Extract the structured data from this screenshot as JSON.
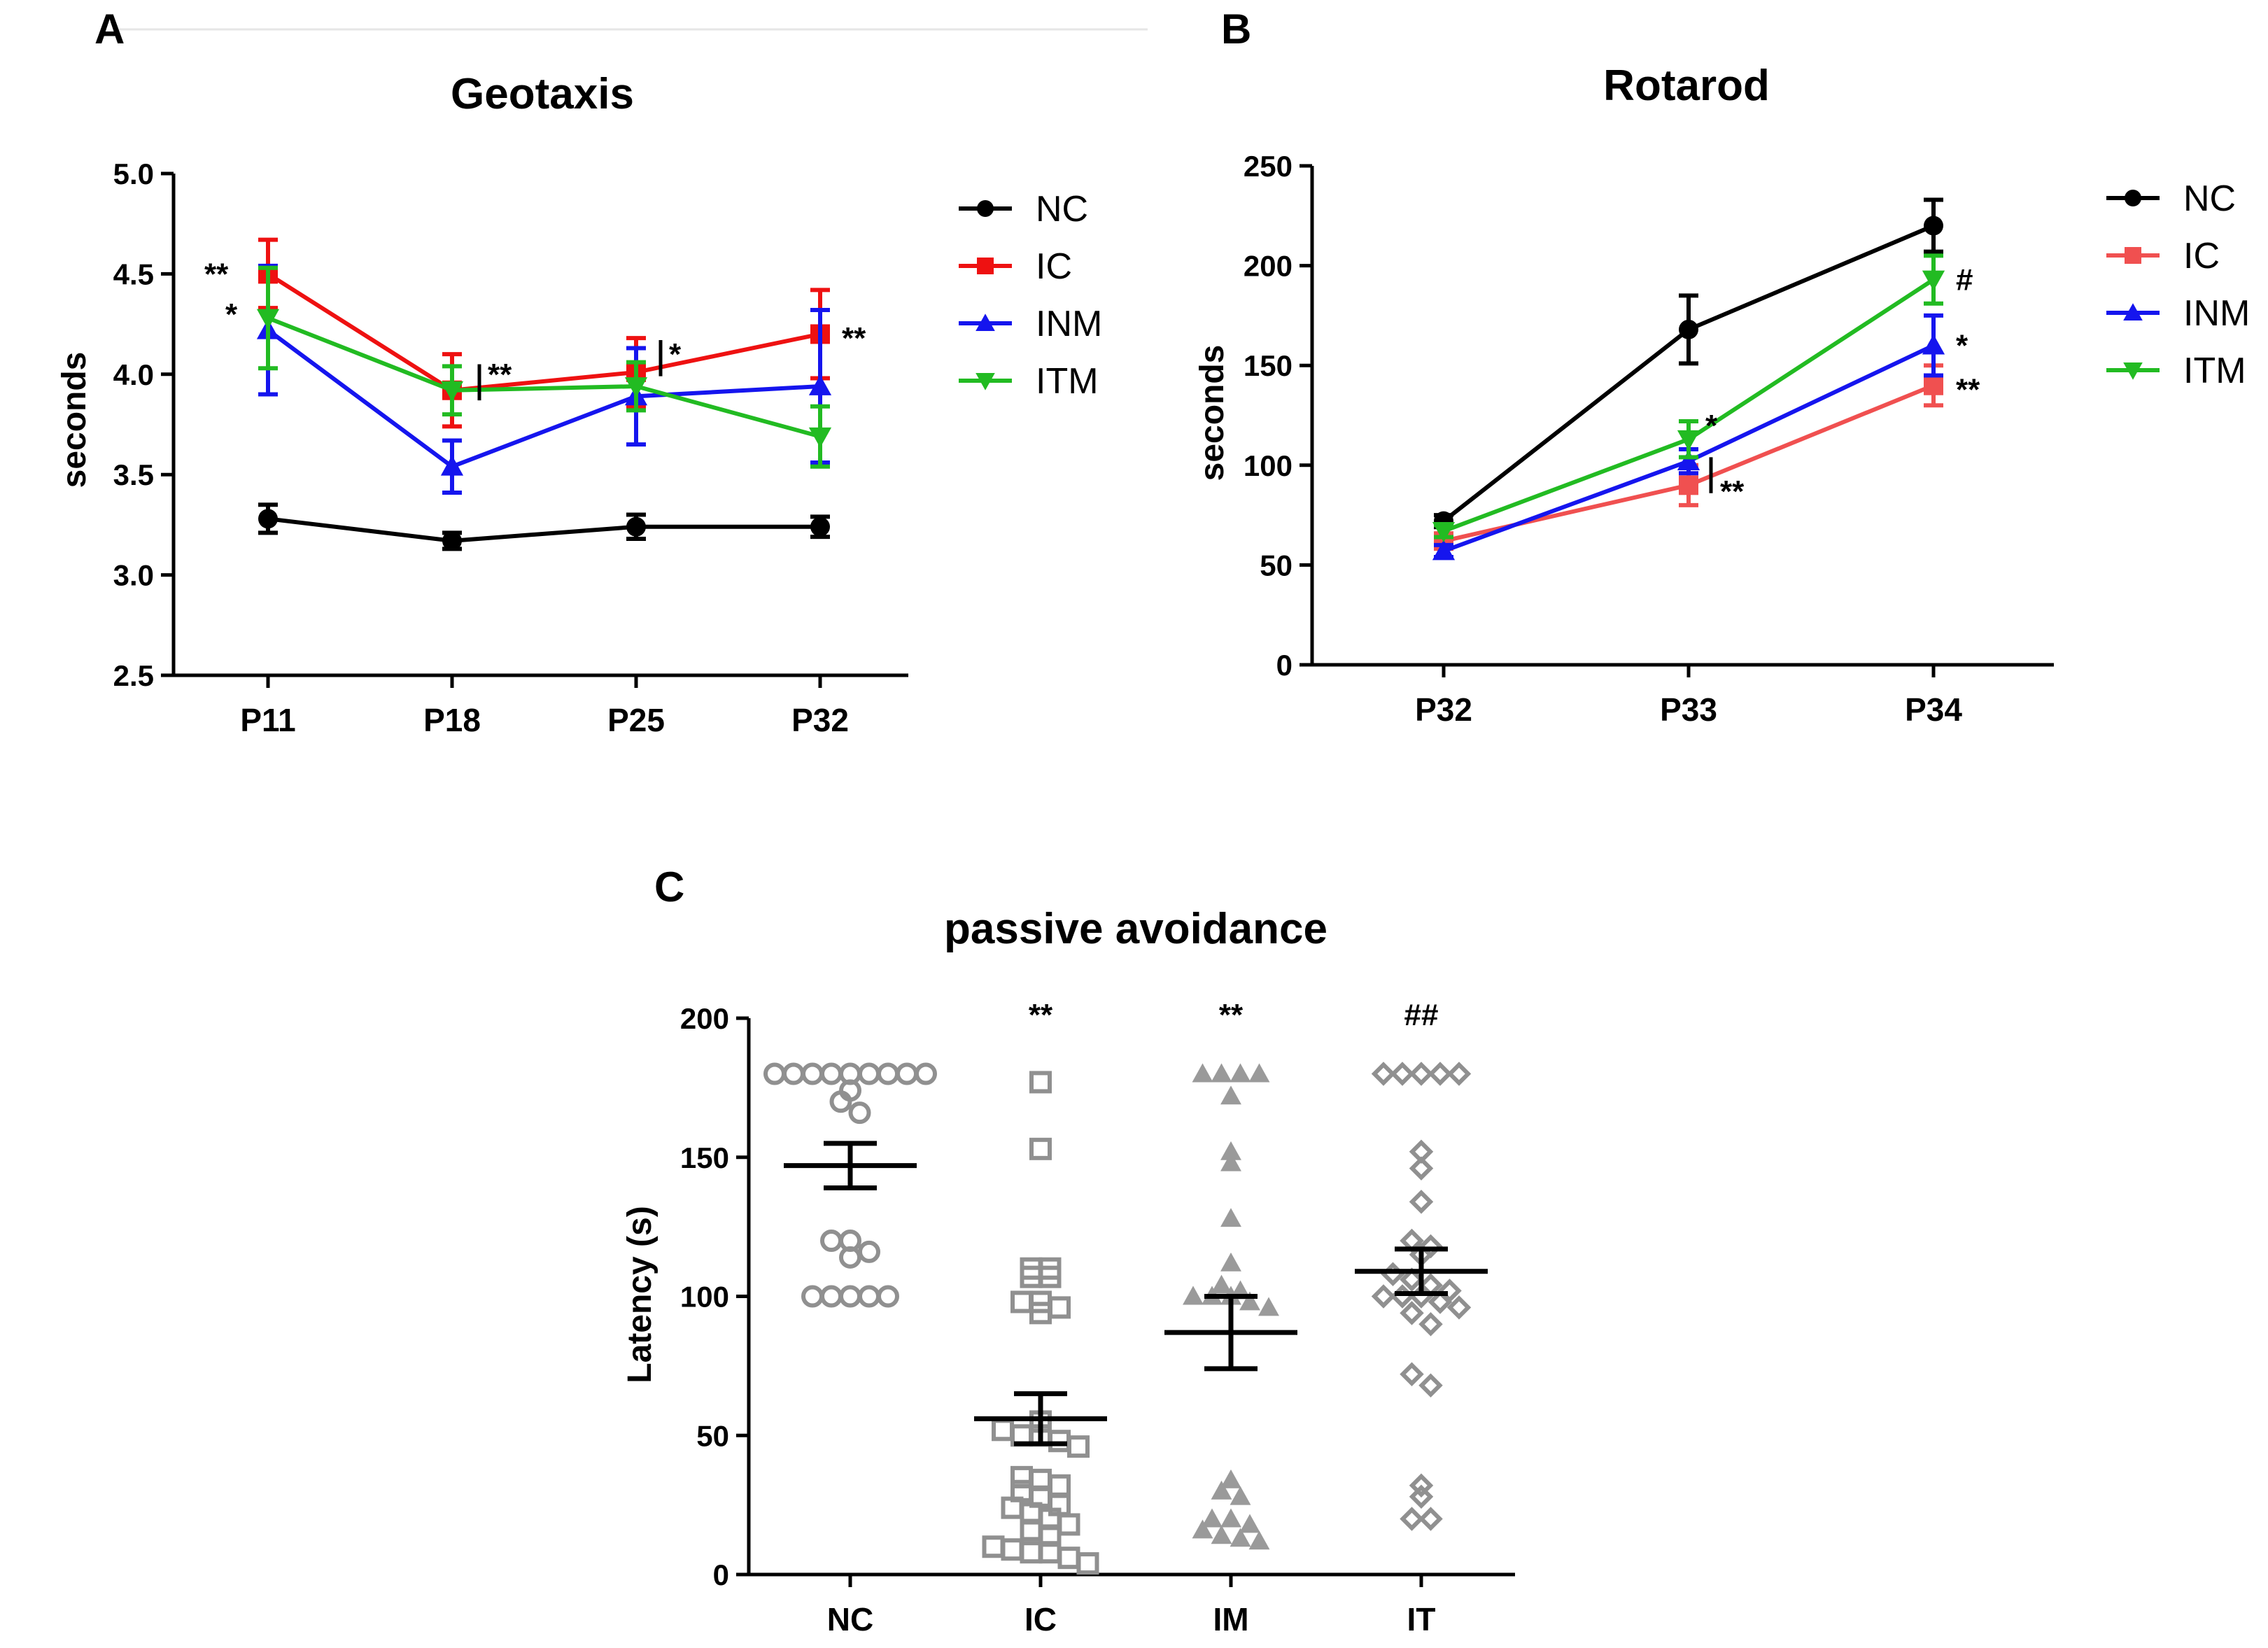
{
  "colors": {
    "NC": "#000000",
    "IC": "#ee1111",
    "IC_B": "#f05050",
    "INM": "#1515ee",
    "ITM": "#22bb22",
    "dots": "#909090"
  },
  "chart_data": [
    {
      "panel": "A",
      "type": "line",
      "title": "Geotaxis",
      "xlabel": "",
      "ylabel": "seconds",
      "categories": [
        "P11",
        "P18",
        "P25",
        "P32"
      ],
      "ylim": [
        2.5,
        5.0
      ],
      "yticks": [
        "2.5",
        "3.0",
        "3.5",
        "4.0",
        "4.5",
        "5.0"
      ],
      "series": [
        {
          "name": "NC",
          "marker": "circle",
          "values": [
            3.28,
            3.17,
            3.24,
            3.24
          ],
          "err": [
            0.07,
            0.04,
            0.06,
            0.05
          ]
        },
        {
          "name": "IC",
          "marker": "square",
          "values": [
            4.5,
            3.92,
            4.01,
            4.2
          ],
          "err": [
            0.17,
            0.18,
            0.17,
            0.22
          ]
        },
        {
          "name": "INM",
          "marker": "triangle-up",
          "values": [
            4.22,
            3.54,
            3.89,
            3.94
          ],
          "err": [
            0.32,
            0.13,
            0.24,
            0.38
          ]
        },
        {
          "name": "ITM",
          "marker": "triangle-down",
          "values": [
            4.28,
            3.92,
            3.94,
            3.69
          ],
          "err": [
            0.25,
            0.12,
            0.12,
            0.15
          ]
        }
      ],
      "annotations": [
        "**",
        "*",
        "**",
        "*",
        "**"
      ]
    },
    {
      "panel": "B",
      "type": "line",
      "title": "Rotarod",
      "xlabel": "",
      "ylabel": "seconds",
      "categories": [
        "P32",
        "P33",
        "P34"
      ],
      "ylim": [
        0,
        250
      ],
      "yticks": [
        "0",
        "50",
        "100",
        "150",
        "200",
        "250"
      ],
      "series": [
        {
          "name": "NC",
          "marker": "circle",
          "values": [
            72,
            168,
            220
          ],
          "err": [
            3,
            17,
            13
          ]
        },
        {
          "name": "IC",
          "marker": "square",
          "values": [
            62,
            90,
            140
          ],
          "err": [
            3,
            10,
            10
          ]
        },
        {
          "name": "INM",
          "marker": "triangle-up",
          "values": [
            57,
            102,
            160
          ],
          "err": [
            3,
            6,
            15
          ]
        },
        {
          "name": "ITM",
          "marker": "triangle-down",
          "values": [
            67,
            113,
            193
          ],
          "err": [
            3,
            9,
            12
          ]
        }
      ],
      "annotations": [
        "#",
        "*",
        "**",
        "*",
        "**"
      ]
    },
    {
      "panel": "C",
      "type": "scatter",
      "title": "passive avoidance",
      "xlabel": "",
      "ylabel": "Latency (s)",
      "categories": [
        "NC",
        "IC",
        "IM",
        "IT"
      ],
      "ylim": [
        0,
        200
      ],
      "yticks": [
        "0",
        "50",
        "100",
        "150",
        "200"
      ],
      "groups": [
        {
          "name": "NC",
          "marker": "circle-open",
          "mean": 147,
          "sem": 8,
          "points": [
            180,
            180,
            180,
            180,
            180,
            180,
            180,
            180,
            180,
            174,
            170,
            166,
            120,
            120,
            116,
            114,
            100,
            100,
            100,
            100,
            100
          ]
        },
        {
          "name": "IC",
          "marker": "square-open",
          "mean": 56,
          "sem": 9,
          "points": [
            177,
            153,
            110,
            110,
            107,
            107,
            98,
            98,
            96,
            94,
            55,
            52,
            50,
            50,
            48,
            46,
            35,
            34,
            32,
            30,
            28,
            25,
            24,
            22,
            20,
            18,
            16,
            14,
            10,
            9,
            8,
            8,
            6,
            4
          ]
        },
        {
          "name": "IM",
          "marker": "triangle-open",
          "mean": 87,
          "sem": 13,
          "points": [
            180,
            180,
            180,
            180,
            172,
            152,
            148,
            128,
            112,
            104,
            102,
            100,
            100,
            100,
            98,
            96,
            34,
            30,
            28,
            20,
            20,
            18,
            16,
            14,
            13,
            12
          ]
        },
        {
          "name": "IT",
          "marker": "diamond-open",
          "mean": 109,
          "sem": 8,
          "points": [
            180,
            180,
            180,
            180,
            180,
            152,
            146,
            134,
            120,
            118,
            115,
            108,
            106,
            104,
            102,
            100,
            100,
            100,
            98,
            96,
            94,
            90,
            72,
            68,
            32,
            28,
            20,
            20
          ]
        }
      ],
      "annotations": [
        "**",
        "**",
        "##"
      ]
    }
  ]
}
